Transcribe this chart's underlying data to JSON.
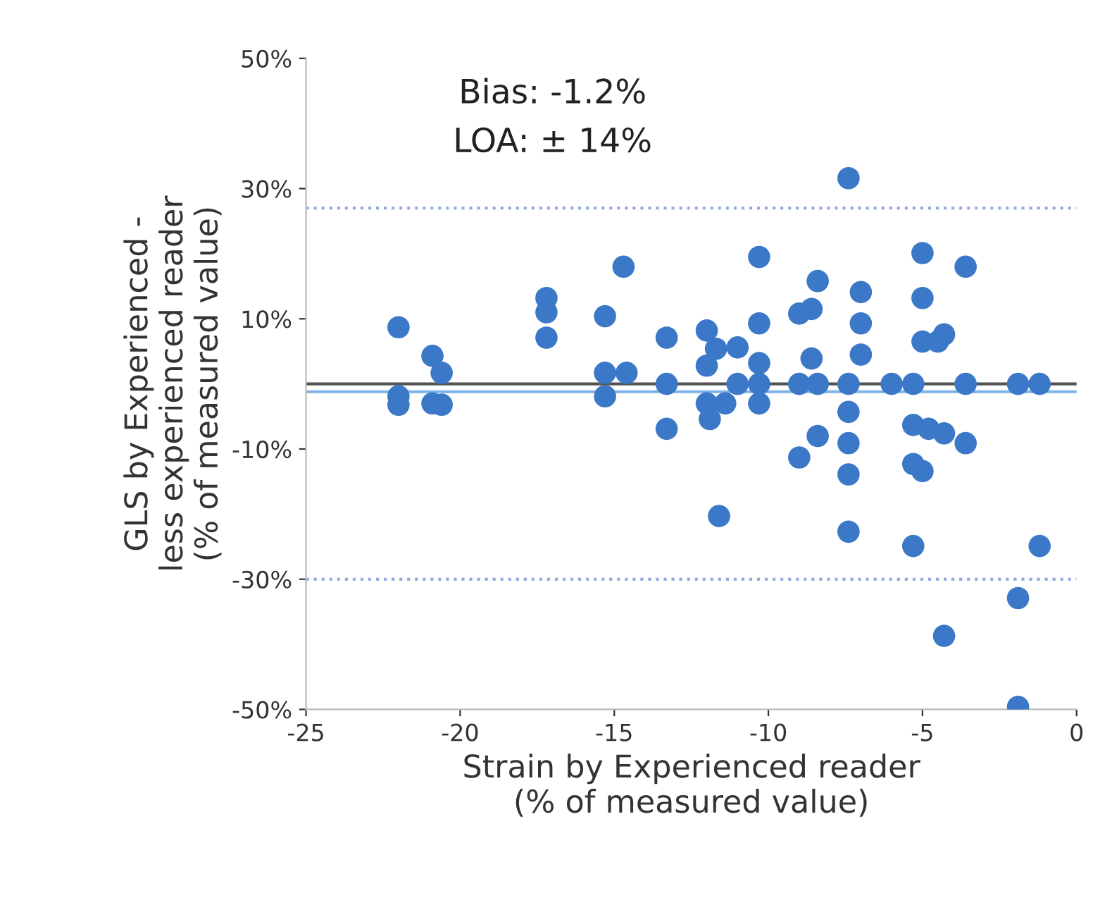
{
  "chart_data": {
    "type": "scatter",
    "xlabel": "Strain by Experienced reader\n(% of measured value)",
    "ylabel": "GLS by Experienced -\nless experienced reader\n(% of measured value)",
    "annotations": [
      "Bias: -1.2%",
      "LOA: ± 14%"
    ],
    "x": [
      -22.0,
      -20.9,
      -20.6,
      -22.0,
      -22.0,
      -20.9,
      -20.6,
      -17.2,
      -17.2,
      -17.2,
      -14.7,
      -15.3,
      -15.3,
      -14.6,
      -15.3,
      -13.3,
      -13.3,
      -12.0,
      -11.7,
      -12.0,
      -11.0,
      -11.0,
      -13.3,
      -12.0,
      -11.4,
      -11.9,
      -11.6,
      -7.4,
      -10.3,
      -5.0,
      -3.6,
      -8.4,
      -7.0,
      -5.0,
      -9.0,
      -8.6,
      -10.3,
      -7.0,
      -5.0,
      -4.3,
      -4.5,
      -10.3,
      -8.6,
      -7.0,
      -10.3,
      -9.0,
      -8.4,
      -7.4,
      -6.0,
      -5.3,
      -3.6,
      -1.9,
      -1.2,
      -10.3,
      -7.4,
      -8.4,
      -9.0,
      -7.4,
      -7.4,
      -5.3,
      -4.8,
      -4.3,
      -3.6,
      -5.3,
      -5.0,
      -7.4,
      -5.3,
      -1.2,
      -1.9,
      -4.3,
      -1.9
    ],
    "values": [
      8.7,
      4.3,
      1.7,
      -1.9,
      -3.2,
      -3.0,
      -3.2,
      13.2,
      11.0,
      7.1,
      18.0,
      10.4,
      1.7,
      1.7,
      -1.9,
      7.1,
      0,
      8.2,
      5.4,
      2.8,
      5.6,
      0,
      -6.9,
      -3.0,
      -3.0,
      -5.4,
      -20.3,
      31.6,
      19.5,
      20.1,
      18.0,
      15.8,
      14.1,
      13.2,
      10.8,
      11.5,
      9.3,
      9.3,
      6.5,
      7.6,
      6.5,
      3.2,
      3.9,
      4.5,
      0,
      0,
      0,
      0,
      0,
      0,
      0,
      0,
      0,
      -3.0,
      -4.3,
      -8.0,
      -11.3,
      -9.1,
      -13.9,
      -6.3,
      -6.9,
      -7.6,
      -9.1,
      -12.3,
      -13.4,
      -22.7,
      -24.9,
      -24.9,
      -32.9,
      -38.7,
      -49.6
    ],
    "color": "#3b78c8",
    "marker": "circle",
    "grid": false,
    "legend": false,
    "xlim": [
      -25,
      0
    ],
    "xticks": [
      -25,
      -20,
      -15,
      -10,
      -5,
      0
    ],
    "ylim": [
      -50,
      50
    ],
    "yticks": [
      {
        "value": -50,
        "label": "-50%"
      },
      {
        "value": -30,
        "label": "-30%"
      },
      {
        "value": -10,
        "label": "-10%"
      },
      {
        "value": 10,
        "label": "10%"
      },
      {
        "value": 30,
        "label": "30%"
      },
      {
        "value": 50,
        "label": "50%"
      }
    ],
    "ref_lines": [
      {
        "axis": "y",
        "value": 0,
        "color": "#555555",
        "line_style": "solid"
      },
      {
        "axis": "y",
        "value": -1.2,
        "color": "#7fb2e5",
        "line_style": "solid"
      },
      {
        "axis": "y",
        "value": 27,
        "color": "#8fa6e0",
        "line_style": "dotted"
      },
      {
        "axis": "y",
        "value": -30,
        "color": "#8fa6e0",
        "line_style": "dotted"
      }
    ]
  }
}
